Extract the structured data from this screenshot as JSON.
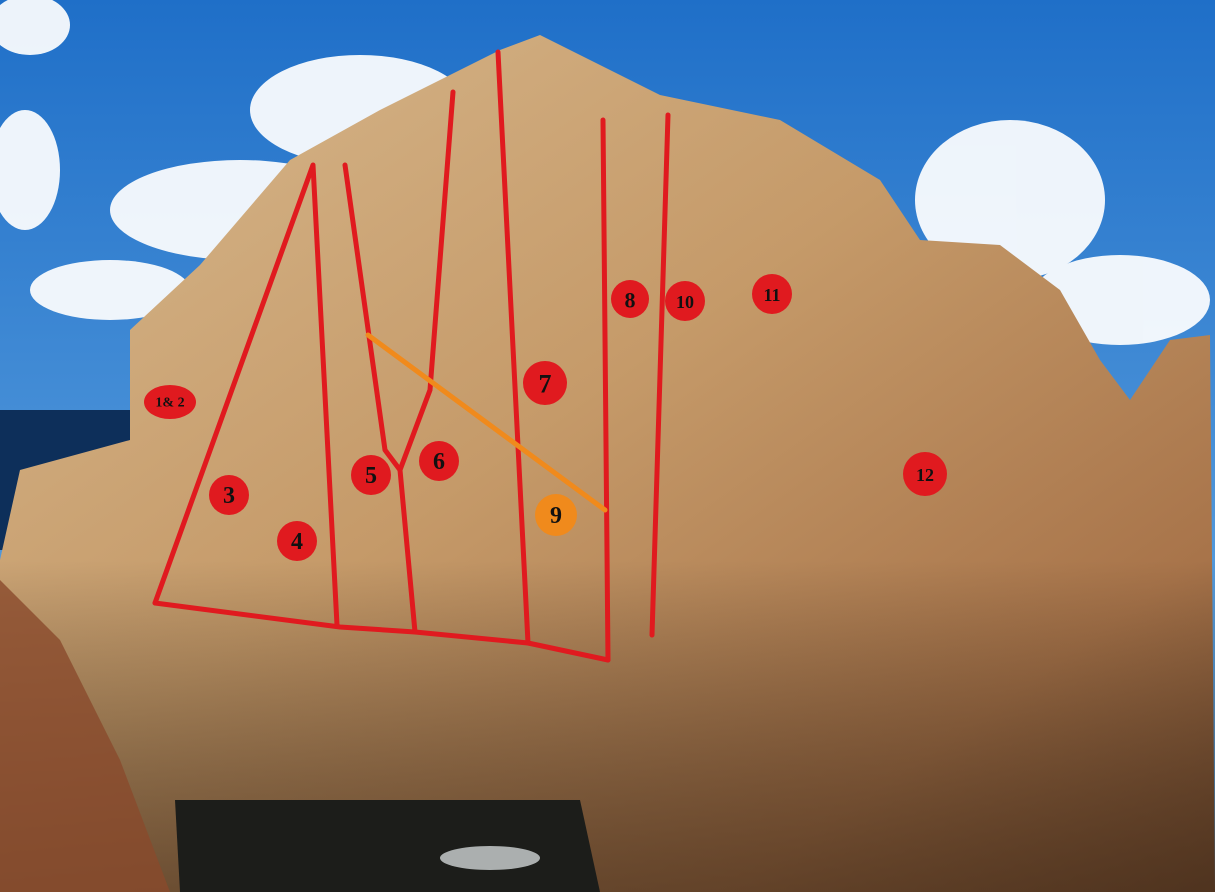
{
  "route_labels": [
    "1& 2",
    "3",
    "4",
    "5",
    "6",
    "7",
    "8",
    "9",
    "10",
    "11",
    "12"
  ]
}
